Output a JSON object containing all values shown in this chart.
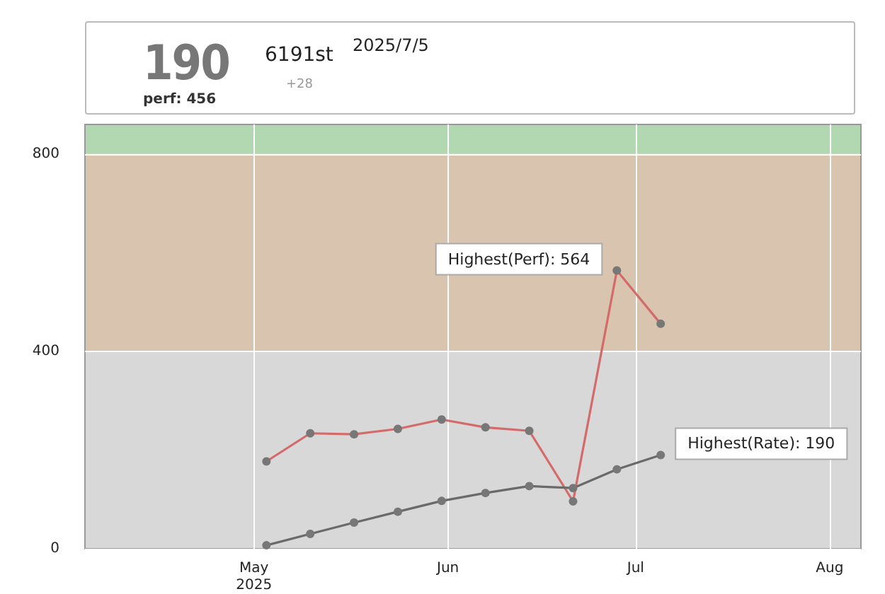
{
  "chart_data": {
    "type": "line",
    "x": [
      "2025-05-03",
      "2025-05-10",
      "2025-05-17",
      "2025-05-24",
      "2025-05-31",
      "2025-06-07",
      "2025-06-14",
      "2025-06-21",
      "2025-06-28",
      "2025-07-05"
    ],
    "series": [
      {
        "color": "#d46a6a",
        "values": [
          177,
          234,
          232,
          243,
          262,
          246,
          239,
          96,
          564,
          456
        ]
      },
      {
        "color": "#6a6a6a",
        "values": [
          7,
          30,
          53,
          75,
          97,
          113,
          127,
          123,
          161,
          190
        ]
      }
    ],
    "xlim": [
      "2025-04-04",
      "2025-08-06"
    ],
    "xticks": [
      {
        "value": "2025-05-01",
        "label": "May\n2025"
      },
      {
        "value": "2025-06-01",
        "label": "Jun"
      },
      {
        "value": "2025-07-01",
        "label": "Jul"
      },
      {
        "value": "2025-08-01",
        "label": "Aug"
      }
    ],
    "ylim": [
      0,
      860
    ],
    "yticks": [
      0,
      400,
      800
    ],
    "bands": [
      {
        "axis": "y",
        "from": 0,
        "to": 400,
        "color": "#d8d8d8"
      },
      {
        "axis": "y",
        "from": 400,
        "to": 800,
        "color": "#d9c4b0"
      },
      {
        "axis": "y",
        "from": 800,
        "to": 860,
        "color": "#b2d8b2"
      }
    ],
    "annotations": [
      "190",
      "perf: 456",
      "6191st",
      "+28",
      "2025/7/5",
      {
        "text": "Highest(Perf): 564",
        "x": "2025-06-28",
        "y": 564
      },
      {
        "text": "Highest(Rate): 190",
        "x": "2025-07-05",
        "y": 190
      }
    ],
    "grid": true,
    "marker": "circle",
    "line_style": "solid"
  }
}
